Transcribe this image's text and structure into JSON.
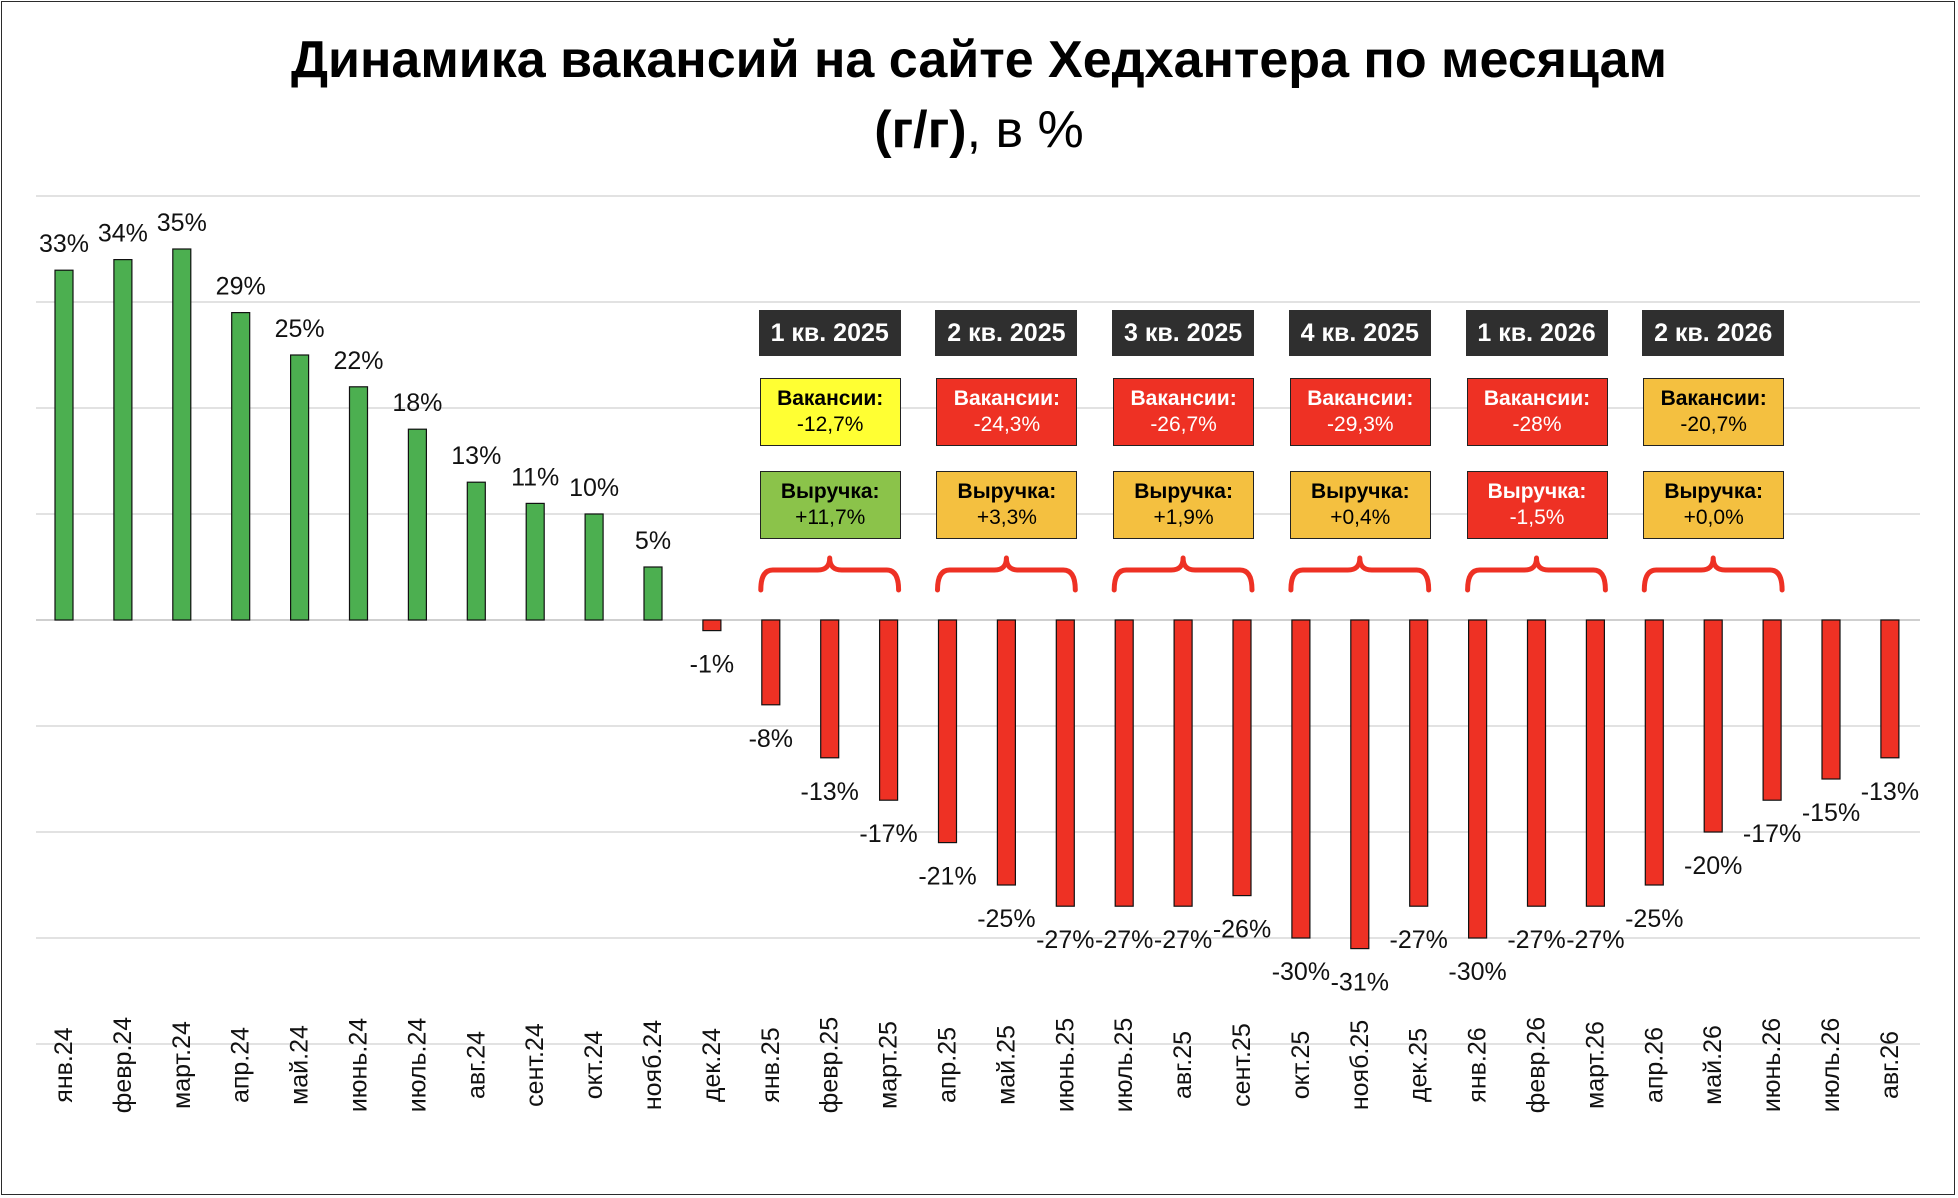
{
  "title": {
    "line1": "Динамика вакансий на сайте Хедхантера по месяцам",
    "line2_bold": "(г/г)",
    "line2_rest": ", в %"
  },
  "colors": {
    "positive": "#4caf50",
    "negative": "#ee3124",
    "grid": "#d9d9d9"
  },
  "chart_data": {
    "type": "bar",
    "categories": [
      "янв.24",
      "февр.24",
      "март.24",
      "апр.24",
      "май.24",
      "июнь.24",
      "июль.24",
      "авг.24",
      "сент.24",
      "окт.24",
      "нояб.24",
      "дек.24",
      "янв.25",
      "февр.25",
      "март.25",
      "апр.25",
      "май.25",
      "июнь.25",
      "июль.25",
      "авг.25",
      "сент.25",
      "окт.25",
      "нояб.25",
      "дек.25",
      "янв.26",
      "февр.26",
      "март.26",
      "апр.26",
      "май.26",
      "июнь.26",
      "июль.26",
      "авг.26"
    ],
    "values": [
      33,
      34,
      35,
      29,
      25,
      22,
      18,
      13,
      11,
      10,
      5,
      -1,
      -8,
      -13,
      -17,
      -21,
      -25,
      -27,
      -27,
      -27,
      -26,
      -30,
      -31,
      -27,
      -30,
      -27,
      -27,
      -25,
      -20,
      -17,
      -15,
      -13
    ],
    "data_labels": [
      "33%",
      "34%",
      "35%",
      "29%",
      "25%",
      "22%",
      "18%",
      "13%",
      "11%",
      "10%",
      "5%",
      "-1%",
      "-8%",
      "-13%",
      "-17%",
      "-21%",
      "-25%",
      "-27%",
      "-27%",
      "-27%",
      "-26%",
      "-30%",
      "-31%",
      "-27%",
      "-30%",
      "-27%",
      "-27%",
      "-25%",
      "-20%",
      "-17%",
      "-15%",
      "-13%"
    ],
    "ylim": [
      -40,
      40
    ],
    "grid": true
  },
  "quarters": [
    {
      "label": "1 кв. 2025",
      "vac_label": "Вакансии:",
      "vac_value": "-12,7%",
      "vac_color": "#ffff33",
      "vac_text": "#000000",
      "rev_label": "Выручка:",
      "rev_value": "+11,7%",
      "rev_color": "#8bc34a",
      "rev_text": "#000000"
    },
    {
      "label": "2 кв. 2025",
      "vac_label": "Вакансии:",
      "vac_value": "-24,3%",
      "vac_color": "#ee3124",
      "vac_text": "#ffffff",
      "rev_label": "Выручка:",
      "rev_value": "+3,3%",
      "rev_color": "#f4c040",
      "rev_text": "#000000"
    },
    {
      "label": "3 кв. 2025",
      "vac_label": "Вакансии:",
      "vac_value": "-26,7%",
      "vac_color": "#ee3124",
      "vac_text": "#ffffff",
      "rev_label": "Выручка:",
      "rev_value": "+1,9%",
      "rev_color": "#f4c040",
      "rev_text": "#000000"
    },
    {
      "label": "4 кв. 2025",
      "vac_label": "Вакансии:",
      "vac_value": "-29,3%",
      "vac_color": "#ee3124",
      "vac_text": "#ffffff",
      "rev_label": "Выручка:",
      "rev_value": "+0,4%",
      "rev_color": "#f4c040",
      "rev_text": "#000000"
    },
    {
      "label": "1 кв. 2026",
      "vac_label": "Вакансии:",
      "vac_value": "-28%",
      "vac_color": "#ee3124",
      "vac_text": "#ffffff",
      "rev_label": "Выручка:",
      "rev_value": "-1,5%",
      "rev_color": "#ee3124",
      "rev_text": "#ffffff"
    },
    {
      "label": "2 кв. 2026",
      "vac_label": "Вакансии:",
      "vac_value": "-20,7%",
      "vac_color": "#f4c040",
      "vac_text": "#000000",
      "rev_label": "Выручка:",
      "rev_value": "+0,0%",
      "rev_color": "#f4c040",
      "rev_text": "#000000"
    }
  ]
}
